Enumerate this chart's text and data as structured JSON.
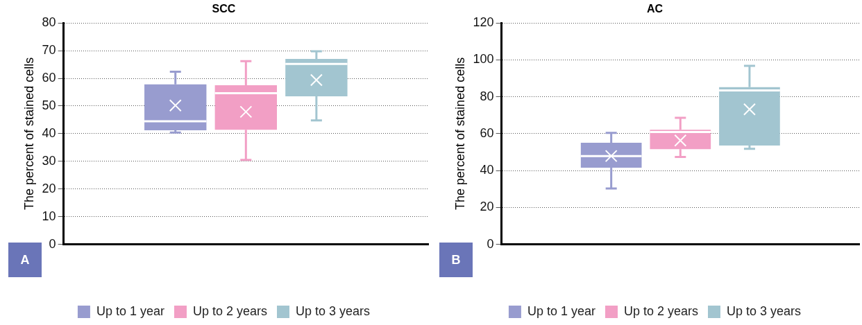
{
  "chart_data": [
    {
      "type": "box",
      "title": "SCC",
      "ylabel": "The percent of stained cells",
      "annotations": [
        "A"
      ],
      "categories": [
        null
      ],
      "ylim": [
        0,
        80
      ],
      "yticks": [
        0,
        10,
        20,
        30,
        40,
        50,
        60,
        70,
        80
      ],
      "grid": "y",
      "legend": "bottom",
      "marker": "cross",
      "series": [
        {
          "name": "Up to 1 year",
          "color": "#989ccf",
          "boxes": [
            {
              "low": 40.4,
              "q1": 41.2,
              "median": 44.5,
              "q3": 57.8,
              "high": 62.4,
              "mean": 50.2
            }
          ]
        },
        {
          "name": "Up to 2 years",
          "color": "#f29fc5",
          "boxes": [
            {
              "low": 30.5,
              "q1": 41.4,
              "median": 54.6,
              "q3": 57.5,
              "high": 66.2,
              "mean": 47.9
            }
          ]
        },
        {
          "name": "Up to 3 years",
          "color": "#a2c5d0",
          "boxes": [
            {
              "low": 44.8,
              "q1": 53.5,
              "median": 65.2,
              "q3": 67,
              "high": 69.8,
              "mean": 59.4
            }
          ]
        }
      ]
    },
    {
      "type": "box",
      "title": "AC",
      "ylabel": "The percent of stained cells",
      "annotations": [
        "B"
      ],
      "categories": [
        null
      ],
      "ylim": [
        0,
        120
      ],
      "yticks": [
        0,
        20,
        40,
        60,
        80,
        100,
        120
      ],
      "grid": "y",
      "legend": "bottom",
      "marker": "cross",
      "series": [
        {
          "name": "Up to 1 year",
          "color": "#989ccf",
          "boxes": [
            {
              "low": 30.3,
              "q1": 41.6,
              "median": 47.8,
              "q3": 55.1,
              "high": 60.4,
              "mean": 47.9
            }
          ]
        },
        {
          "name": "Up to 2 years",
          "color": "#f29fc5",
          "boxes": [
            {
              "low": 47.4,
              "q1": 51.6,
              "median": 60.9,
              "q3": 62.1,
              "high": 68.6,
              "mean": 56.3
            }
          ]
        },
        {
          "name": "Up to 3 years",
          "color": "#a2c5d0",
          "boxes": [
            {
              "low": 51.8,
              "q1": 53.6,
              "median": 83.4,
              "q3": 85.2,
              "high": 96.8,
              "mean": 73.2
            }
          ]
        }
      ]
    }
  ]
}
